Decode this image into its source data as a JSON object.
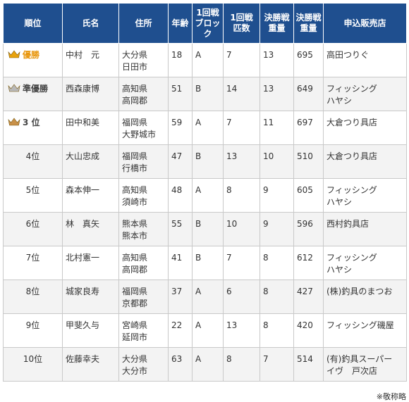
{
  "headers": [
    "順位",
    "氏名",
    "住所",
    "年齢",
    "1回戦\nブロック",
    "1回戦\n匹数",
    "決勝戦\n重量",
    "決勝戦\n重量",
    "申込販売店"
  ],
  "rows": [
    {
      "rank": "優勝",
      "medal": "gold",
      "name": "中村　元",
      "address": "大分県\n日田市",
      "age": "18",
      "block": "A",
      "r1count": "7",
      "final_count": "13",
      "final_weight": "695",
      "shop": "高田つりぐ"
    },
    {
      "rank": "準優勝",
      "medal": "silver",
      "name": "西森康博",
      "address": "高知県\n高岡郡",
      "age": "51",
      "block": "B",
      "r1count": "14",
      "final_count": "13",
      "final_weight": "649",
      "shop": "フィッシング\nハヤシ"
    },
    {
      "rank": "3 位",
      "medal": "bronze",
      "name": "田中和美",
      "address": "福岡県\n大野城市",
      "age": "59",
      "block": "A",
      "r1count": "7",
      "final_count": "11",
      "final_weight": "697",
      "shop": "大倉つり具店"
    },
    {
      "rank": "4位",
      "medal": "",
      "name": "大山忠成",
      "address": "福岡県\n行橋市",
      "age": "47",
      "block": "B",
      "r1count": "13",
      "final_count": "10",
      "final_weight": "510",
      "shop": "大倉つり具店"
    },
    {
      "rank": "5位",
      "medal": "",
      "name": "森本伸一",
      "address": "高知県\n須崎市",
      "age": "48",
      "block": "A",
      "r1count": "8",
      "final_count": "9",
      "final_weight": "605",
      "shop": "フィッシング\nハヤシ"
    },
    {
      "rank": "6位",
      "medal": "",
      "name": "林　真矢",
      "address": "熊本県\n熊本市",
      "age": "55",
      "block": "B",
      "r1count": "10",
      "final_count": "9",
      "final_weight": "596",
      "shop": "西村釣具店"
    },
    {
      "rank": "7位",
      "medal": "",
      "name": "北村憲一",
      "address": "高知県\n高岡郡",
      "age": "41",
      "block": "B",
      "r1count": "7",
      "final_count": "8",
      "final_weight": "612",
      "shop": "フィッシング\nハヤシ"
    },
    {
      "rank": "8位",
      "medal": "",
      "name": "城家良寿",
      "address": "福岡県\n京都郡",
      "age": "37",
      "block": "A",
      "r1count": "6",
      "final_count": "8",
      "final_weight": "427",
      "shop": "(株)釣具のまつお"
    },
    {
      "rank": "9位",
      "medal": "",
      "name": "甲斐久与",
      "address": "宮崎県\n延岡市",
      "age": "22",
      "block": "A",
      "r1count": "13",
      "final_count": "8",
      "final_weight": "420",
      "shop": "フィッシング磯屋"
    },
    {
      "rank": "10位",
      "medal": "",
      "name": "佐藤幸夫",
      "address": "大分県\n大分市",
      "age": "63",
      "block": "A",
      "r1count": "8",
      "final_count": "7",
      "final_weight": "514",
      "shop": "(有)釣具スーパー\nイヴ　戸次店"
    }
  ],
  "footnote": "※敬称略",
  "medal_colors": {
    "gold": "#e8a20c",
    "silver": "#b8b8b8",
    "bronze": "#c89048"
  }
}
